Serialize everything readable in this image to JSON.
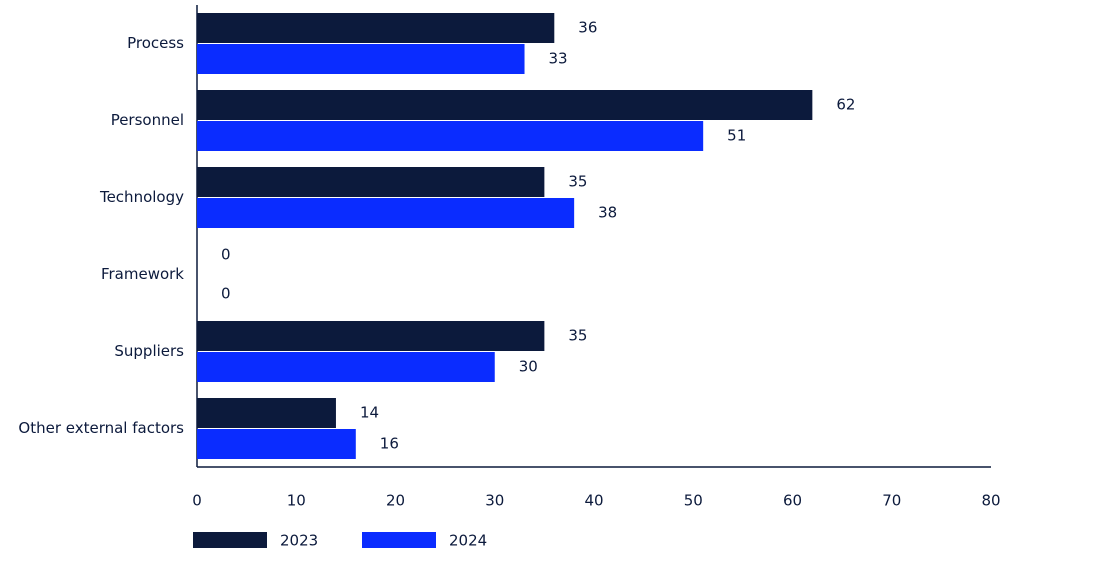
{
  "chart_data": {
    "type": "hbar",
    "categories": [
      "Process",
      "Personnel",
      "Technology",
      "Framework",
      "Suppliers",
      "Other external factors"
    ],
    "series": [
      {
        "name": "2023",
        "color": "#0c1a3c",
        "values": [
          36,
          62,
          35,
          0,
          35,
          14
        ]
      },
      {
        "name": "2024",
        "color": "#0a2cff",
        "values": [
          33,
          51,
          38,
          0,
          30,
          16
        ]
      }
    ],
    "xlim": [
      0,
      80
    ],
    "xticks": [
      0,
      10,
      20,
      30,
      40,
      50,
      60,
      70,
      80
    ],
    "grid": false,
    "legend": "bottom"
  }
}
